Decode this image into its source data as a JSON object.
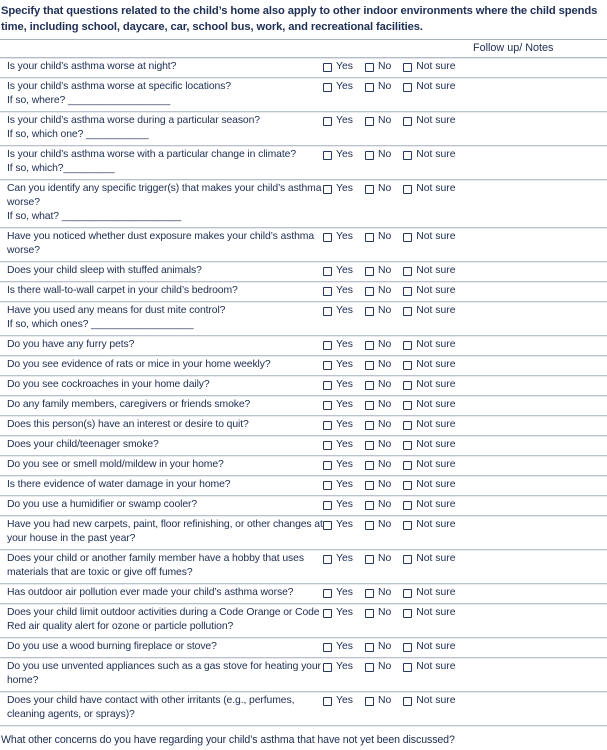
{
  "intro": "Specify that questions related to the child’s home also apply to other indoor environments where the child spends time, including school, daycare, car, school bus, work, and recreational facilities.",
  "followup_header": "Follow up/ Notes",
  "options": [
    "Yes",
    "No",
    "Not sure"
  ],
  "questions": [
    {
      "text": "Is your child’s asthma worse at night?",
      "subtext": ""
    },
    {
      "text": "Is your child’s asthma worse at specific locations?",
      "subtext": "If so, where? __________________"
    },
    {
      "text": "Is your child’s asthma worse during a particular season?",
      "subtext": "If so, which one? ___________"
    },
    {
      "text": "Is your child’s asthma worse with a particular change in climate?",
      "subtext": "If so, which?_________"
    },
    {
      "text": "Can you identify any specific trigger(s) that makes your child’s asthma worse?",
      "subtext": "If so, what? _____________________"
    },
    {
      "text": "Have you noticed whether dust exposure makes your child’s asthma worse?",
      "subtext": ""
    },
    {
      "text": "Does your child sleep with stuffed animals?",
      "subtext": ""
    },
    {
      "text": "Is there wall-to-wall carpet in your child’s bedroom?",
      "subtext": ""
    },
    {
      "text": "Have you used any means for dust mite control?",
      "subtext": "If so, which ones? __________________"
    },
    {
      "text": "Do you have any furry pets?",
      "subtext": ""
    },
    {
      "text": "Do you see evidence of rats or mice in your home weekly?",
      "subtext": ""
    },
    {
      "text": "Do you see cockroaches in your home daily?",
      "subtext": ""
    },
    {
      "text": "Do any family members, caregivers or friends smoke?",
      "subtext": ""
    },
    {
      "text": "Does this person(s) have an interest or desire to quit?",
      "subtext": ""
    },
    {
      "text": "Does your child/teenager smoke?",
      "subtext": ""
    },
    {
      "text": "Do you see or smell mold/mildew in your home?",
      "subtext": ""
    },
    {
      "text": "Is there evidence of water damage in your home?",
      "subtext": ""
    },
    {
      "text": "Do you use a humidifier or swamp cooler?",
      "subtext": ""
    },
    {
      "text": "Have you had new carpets, paint, floor refinishing, or other changes at your house in the past year?",
      "subtext": ""
    },
    {
      "text": "Does your child or another family member have a hobby that uses materials that are toxic or give off fumes?",
      "subtext": ""
    },
    {
      "text": "Has outdoor air pollution ever made your child’s asthma worse?",
      "subtext": ""
    },
    {
      "text": "Does your child limit outdoor activities during a Code Orange or Code Red air quality alert for ozone or particle pollution?",
      "subtext": ""
    },
    {
      "text": "Do you use a wood burning fireplace or stove?",
      "subtext": ""
    },
    {
      "text": "Do you use unvented appliances such as a gas stove for heating your home?",
      "subtext": ""
    },
    {
      "text": "Does your child have contact with other irritants (e.g., perfumes, cleaning agents, or sprays)?",
      "subtext": ""
    }
  ],
  "footer_question": "What other concerns do you have regarding your child’s asthma that have not yet been discussed?",
  "colors": {
    "text_navy": "#203055",
    "row_line": "#b9c2ce",
    "bottom_rule": "#96a1b1"
  }
}
